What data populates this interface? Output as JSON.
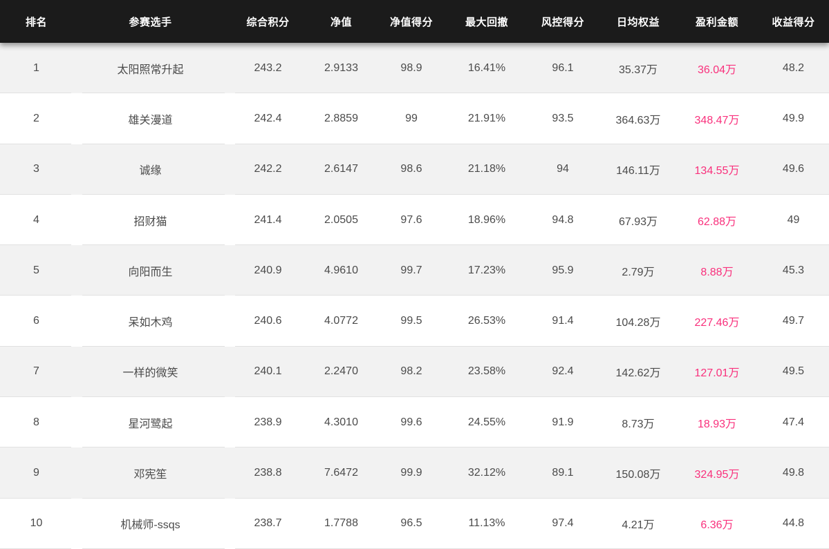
{
  "colors": {
    "profit_text": "#f9307c",
    "header_bg": "#1b1b1b",
    "stripe_bg": "#f2f2f2",
    "row_border": "#e1e1e1",
    "body_text": "#4b4b4b"
  },
  "table": {
    "columns": [
      {
        "key": "rank",
        "label": "排名"
      },
      {
        "key": "player",
        "label": "参赛选手"
      },
      {
        "key": "score",
        "label": "综合积分"
      },
      {
        "key": "nav",
        "label": "净值"
      },
      {
        "key": "nav_score",
        "label": "净值得分"
      },
      {
        "key": "max_drawdown",
        "label": "最大回撤"
      },
      {
        "key": "risk_score",
        "label": "风控得分"
      },
      {
        "key": "avg_equity",
        "label": "日均权益"
      },
      {
        "key": "profit",
        "label": "盈利金额"
      },
      {
        "key": "return_score",
        "label": "收益得分"
      }
    ],
    "rows": [
      {
        "rank": "1",
        "player": "太阳照常升起",
        "score": "243.2",
        "nav": "2.9133",
        "nav_score": "98.9",
        "max_drawdown": "16.41%",
        "risk_score": "96.1",
        "avg_equity": "35.37万",
        "profit": "36.04万",
        "return_score": "48.2"
      },
      {
        "rank": "2",
        "player": "雄关漫道",
        "score": "242.4",
        "nav": "2.8859",
        "nav_score": "99",
        "max_drawdown": "21.91%",
        "risk_score": "93.5",
        "avg_equity": "364.63万",
        "profit": "348.47万",
        "return_score": "49.9"
      },
      {
        "rank": "3",
        "player": "诚缘",
        "score": "242.2",
        "nav": "2.6147",
        "nav_score": "98.6",
        "max_drawdown": "21.18%",
        "risk_score": "94",
        "avg_equity": "146.11万",
        "profit": "134.55万",
        "return_score": "49.6"
      },
      {
        "rank": "4",
        "player": "招财猫",
        "score": "241.4",
        "nav": "2.0505",
        "nav_score": "97.6",
        "max_drawdown": "18.96%",
        "risk_score": "94.8",
        "avg_equity": "67.93万",
        "profit": "62.88万",
        "return_score": "49"
      },
      {
        "rank": "5",
        "player": "向阳而生",
        "score": "240.9",
        "nav": "4.9610",
        "nav_score": "99.7",
        "max_drawdown": "17.23%",
        "risk_score": "95.9",
        "avg_equity": "2.79万",
        "profit": "8.88万",
        "return_score": "45.3"
      },
      {
        "rank": "6",
        "player": "呆如木鸡",
        "score": "240.6",
        "nav": "4.0772",
        "nav_score": "99.5",
        "max_drawdown": "26.53%",
        "risk_score": "91.4",
        "avg_equity": "104.28万",
        "profit": "227.46万",
        "return_score": "49.7"
      },
      {
        "rank": "7",
        "player": "一样的微笑",
        "score": "240.1",
        "nav": "2.2470",
        "nav_score": "98.2",
        "max_drawdown": "23.58%",
        "risk_score": "92.4",
        "avg_equity": "142.62万",
        "profit": "127.01万",
        "return_score": "49.5"
      },
      {
        "rank": "8",
        "player": "星河鹭起",
        "score": "238.9",
        "nav": "4.3010",
        "nav_score": "99.6",
        "max_drawdown": "24.55%",
        "risk_score": "91.9",
        "avg_equity": "8.73万",
        "profit": "18.93万",
        "return_score": "47.4"
      },
      {
        "rank": "9",
        "player": "邓宪笙",
        "score": "238.8",
        "nav": "7.6472",
        "nav_score": "99.9",
        "max_drawdown": "32.12%",
        "risk_score": "89.1",
        "avg_equity": "150.08万",
        "profit": "324.95万",
        "return_score": "49.8"
      },
      {
        "rank": "10",
        "player": "机械师-ssqs",
        "score": "238.7",
        "nav": "1.7788",
        "nav_score": "96.5",
        "max_drawdown": "11.13%",
        "risk_score": "97.4",
        "avg_equity": "4.21万",
        "profit": "6.36万",
        "return_score": "44.8"
      }
    ]
  }
}
